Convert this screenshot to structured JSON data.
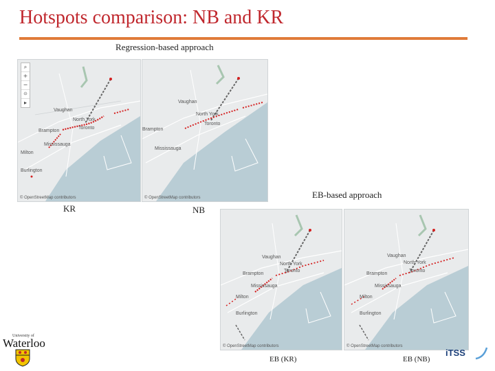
{
  "slide": {
    "title": "Hotspots comparison: NB and KR",
    "regression_label": "Regression-based approach",
    "eb_label": "EB-based approach",
    "kr_label": "KR",
    "nb_label": "NB",
    "eb_kr_label": "EB (KR)",
    "eb_nb_label": "EB (NB)"
  },
  "maps": {
    "cities": {
      "vaughan": "Vaughan",
      "north_york": "North York",
      "toronto": "Toronto",
      "brampton": "Brampton",
      "mississauga": "Mississauga",
      "milton": "Milton",
      "burlington": "Burlington"
    },
    "credit_mapbox": "© OpenStreetMap contributors",
    "credit_osm": "© OpenStreetMap contributors"
  },
  "logos": {
    "uw_small": "University of",
    "uw_big": "Waterloo",
    "itss": "iTSS"
  },
  "colors": {
    "title": "#c0272d",
    "rule": "#e07b39",
    "hotspot": "#d42020",
    "lake": "#b9cdd5",
    "land": "#e9ebec"
  }
}
